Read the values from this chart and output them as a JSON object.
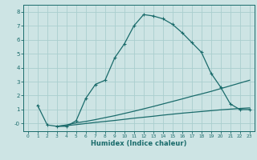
{
  "xlabel": "Humidex (Indice chaleur)",
  "xlim": [
    -0.5,
    23.5
  ],
  "ylim": [
    -0.55,
    8.5
  ],
  "xticks": [
    0,
    1,
    2,
    3,
    4,
    5,
    6,
    7,
    8,
    9,
    10,
    11,
    12,
    13,
    14,
    15,
    16,
    17,
    18,
    19,
    20,
    21,
    22,
    23
  ],
  "yticks": [
    0,
    1,
    2,
    3,
    4,
    5,
    6,
    7,
    8
  ],
  "ytick_labels": [
    "-0",
    "1",
    "2",
    "3",
    "4",
    "5",
    "6",
    "7",
    "8"
  ],
  "bg_color": "#cde4e4",
  "grid_color": "#aacece",
  "line_color": "#1a6b6b",
  "line1_x": [
    1,
    2,
    3,
    4,
    5,
    6,
    7,
    8,
    9,
    10,
    11,
    12,
    13,
    14,
    15,
    16,
    17,
    18,
    19,
    20,
    21,
    22,
    23
  ],
  "line1_y": [
    1.3,
    -0.1,
    -0.2,
    -0.2,
    0.2,
    1.8,
    2.8,
    3.1,
    4.7,
    5.7,
    7.0,
    7.8,
    7.7,
    7.5,
    7.1,
    6.5,
    5.8,
    5.1,
    3.6,
    2.6,
    1.4,
    1.0,
    1.0
  ],
  "line2_x": [
    3,
    4,
    5,
    6,
    7,
    8,
    9,
    10,
    11,
    12,
    13,
    14,
    15,
    16,
    17,
    18,
    19,
    20,
    21,
    22,
    23
  ],
  "line2_y": [
    -0.2,
    -0.1,
    0.05,
    0.15,
    0.28,
    0.42,
    0.56,
    0.72,
    0.88,
    1.05,
    1.22,
    1.4,
    1.58,
    1.76,
    1.95,
    2.12,
    2.3,
    2.5,
    2.7,
    2.9,
    3.1
  ],
  "line3_x": [
    3,
    4,
    5,
    6,
    7,
    8,
    9,
    10,
    11,
    12,
    13,
    14,
    15,
    16,
    17,
    18,
    19,
    20,
    21,
    22,
    23
  ],
  "line3_y": [
    -0.2,
    -0.15,
    -0.08,
    0.0,
    0.08,
    0.15,
    0.22,
    0.3,
    0.38,
    0.45,
    0.52,
    0.6,
    0.67,
    0.74,
    0.8,
    0.86,
    0.92,
    0.98,
    1.03,
    1.08,
    1.12
  ]
}
